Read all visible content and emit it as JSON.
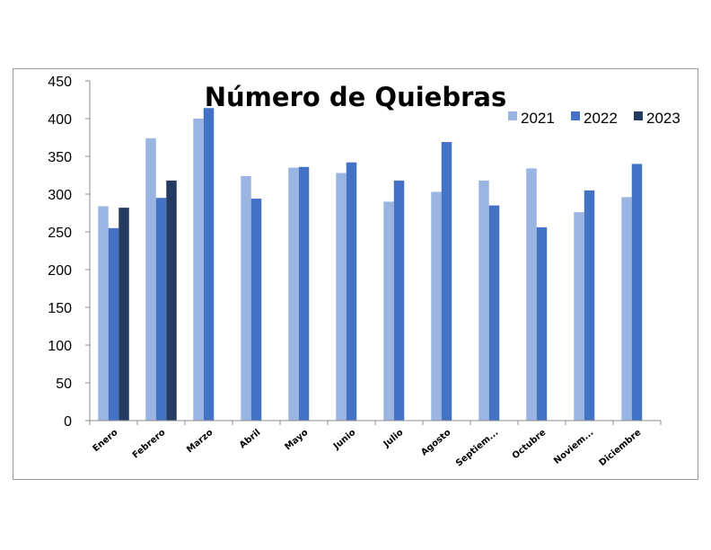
{
  "chart_data": {
    "type": "bar",
    "title": "Número de Quiebras",
    "categories": [
      "Enero",
      "Febrero",
      "Marzo",
      "Abril",
      "Mayo",
      "Junio",
      "Julio",
      "Agosto",
      "Septiem...",
      "Octubre",
      "Noviem...",
      "Diciembre"
    ],
    "series": [
      {
        "name": "2021",
        "color": "#9bb5e2",
        "values": [
          284,
          374,
          400,
          324,
          335,
          328,
          290,
          303,
          318,
          334,
          276,
          296
        ]
      },
      {
        "name": "2022",
        "color": "#4472c4",
        "values": [
          255,
          295,
          414,
          294,
          336,
          342,
          318,
          369,
          285,
          256,
          305,
          340
        ]
      },
      {
        "name": "2023",
        "color": "#253b61",
        "values": [
          282,
          318,
          null,
          null,
          null,
          null,
          null,
          null,
          null,
          null,
          null,
          null
        ]
      }
    ],
    "ylim": [
      0,
      450
    ],
    "yticks": [
      0,
      50,
      100,
      150,
      200,
      250,
      300,
      350,
      400,
      450
    ],
    "legend_position": "top-right",
    "grid": false
  }
}
